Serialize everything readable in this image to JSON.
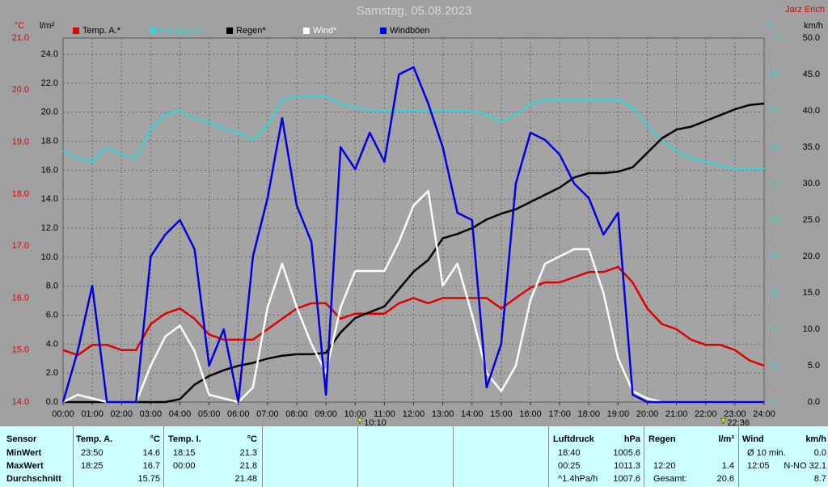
{
  "chart_data": {
    "type": "line",
    "title": "Samstag, 05.08.2023",
    "subtitle": "Jarz Erich",
    "y_label": "°C",
    "y2_label": "l/m²",
    "y3_label": "%",
    "y4_label": "km/h",
    "x": [
      0,
      0.5,
      1,
      1.5,
      2,
      2.5,
      3,
      3.5,
      4,
      4.5,
      5,
      5.5,
      6,
      6.5,
      7,
      7.5,
      8,
      8.5,
      9,
      9.5,
      10,
      10.5,
      11,
      11.5,
      12,
      12.5,
      13,
      13.5,
      14,
      14.5,
      15,
      15.5,
      16,
      16.5,
      17,
      17.5,
      18,
      18.5,
      19,
      19.5,
      20,
      20.5,
      21,
      21.5,
      22,
      22.5,
      23,
      23.5,
      24
    ],
    "xlim": [
      0,
      24
    ],
    "xticks": [
      {
        "value": 0,
        "label": "00:00"
      },
      {
        "value": 1,
        "label": "01:00"
      },
      {
        "value": 2,
        "label": "02:00"
      },
      {
        "value": 3,
        "label": "03:00"
      },
      {
        "value": 4,
        "label": "04:00"
      },
      {
        "value": 5,
        "label": "05:00"
      },
      {
        "value": 6,
        "label": "06:00"
      },
      {
        "value": 7,
        "label": "07:00"
      },
      {
        "value": 8,
        "label": "08:00"
      },
      {
        "value": 9,
        "label": "09:00"
      },
      {
        "value": 10,
        "label": "10:00"
      },
      {
        "value": 11,
        "label": "11:00"
      },
      {
        "value": 12,
        "label": "12:00"
      },
      {
        "value": 13,
        "label": "13:00"
      },
      {
        "value": 14,
        "label": "14:00"
      },
      {
        "value": 15,
        "label": "15:00"
      },
      {
        "value": 16,
        "label": "16:00"
      },
      {
        "value": 17,
        "label": "17:00"
      },
      {
        "value": 18,
        "label": "18:00"
      },
      {
        "value": 19,
        "label": "19:00"
      },
      {
        "value": 20,
        "label": "20:00"
      },
      {
        "value": 21,
        "label": "21:00"
      },
      {
        "value": 22,
        "label": "22:00"
      },
      {
        "value": 23,
        "label": "23:00"
      },
      {
        "value": 24,
        "label": "24:00"
      }
    ],
    "ylim": [
      14,
      21
    ],
    "yticks": [
      {
        "value": 14,
        "label": "14.0"
      },
      {
        "value": 15,
        "label": "15.0"
      },
      {
        "value": 16,
        "label": "16.0"
      },
      {
        "value": 17,
        "label": "17.0"
      },
      {
        "value": 18,
        "label": "18.0"
      },
      {
        "value": 19,
        "label": "19.0"
      },
      {
        "value": 20,
        "label": "20.0"
      },
      {
        "value": 21,
        "label": "21.0"
      }
    ],
    "y2lim": [
      0,
      25.12
    ],
    "y2ticks": [
      {
        "value": 0,
        "label": "0.0"
      },
      {
        "value": 2,
        "label": "2.0"
      },
      {
        "value": 4,
        "label": "4.0"
      },
      {
        "value": 6,
        "label": "6.0"
      },
      {
        "value": 8,
        "label": "8.0"
      },
      {
        "value": 10,
        "label": "10.0"
      },
      {
        "value": 12,
        "label": "12.0"
      },
      {
        "value": 14,
        "label": "14.0"
      },
      {
        "value": 16,
        "label": "16.0"
      },
      {
        "value": 18,
        "label": "18.0"
      },
      {
        "value": 20,
        "label": "20.0"
      },
      {
        "value": 22,
        "label": "22.0"
      },
      {
        "value": 24,
        "label": "24.0"
      }
    ],
    "y3lim": [
      0,
      100
    ],
    "y3ticks": [
      0,
      10,
      20,
      30,
      40,
      50,
      60,
      70,
      80,
      90,
      100
    ],
    "y4lim": [
      0,
      50
    ],
    "y4ticks": [
      {
        "value": 0,
        "label": "0.0"
      },
      {
        "value": 5,
        "label": "5.0"
      },
      {
        "value": 10,
        "label": "10.0"
      },
      {
        "value": 15,
        "label": "15.0"
      },
      {
        "value": 20,
        "label": "20.0"
      },
      {
        "value": 25,
        "label": "25.0"
      },
      {
        "value": 30,
        "label": "30.0"
      },
      {
        "value": 35,
        "label": "35.0"
      },
      {
        "value": 40,
        "label": "40.0"
      },
      {
        "value": 45,
        "label": "45.0"
      },
      {
        "value": 50,
        "label": "50.0"
      }
    ],
    "grid": true,
    "series": [
      {
        "name": "Temp. A.*",
        "color": "#e00000",
        "axis": "y",
        "values": [
          15.0,
          14.9,
          15.1,
          15.1,
          15.0,
          15.0,
          15.5,
          15.7,
          15.8,
          15.6,
          15.3,
          15.2,
          15.2,
          15.2,
          15.4,
          15.6,
          15.8,
          15.9,
          15.9,
          15.6,
          15.7,
          15.7,
          15.7,
          15.9,
          16.0,
          15.9,
          16.0,
          16.0,
          16.0,
          16.0,
          15.8,
          16.0,
          16.2,
          16.3,
          16.3,
          16.4,
          16.5,
          16.5,
          16.6,
          16.3,
          15.8,
          15.5,
          15.4,
          15.2,
          15.1,
          15.1,
          15.0,
          14.8,
          14.7
        ]
      },
      {
        "name": "Feuchte A.*",
        "color": "#40d0d0",
        "axis": "y3",
        "values": [
          69,
          67,
          66,
          70,
          68,
          67,
          75,
          79,
          80,
          78,
          77,
          75,
          74,
          72,
          76,
          83,
          84,
          84,
          84,
          82,
          81,
          80,
          80,
          80,
          80,
          80,
          80,
          80,
          80,
          79,
          77,
          79,
          82,
          83,
          83,
          83,
          83,
          83,
          83,
          81,
          76,
          72,
          69,
          67,
          66,
          65,
          64,
          64,
          64
        ]
      },
      {
        "name": "Regen*",
        "color": "#000000",
        "axis": "y2",
        "values": [
          0,
          0,
          0,
          0,
          0,
          0,
          0,
          0,
          0.2,
          1.2,
          1.8,
          2.2,
          2.5,
          2.7,
          3.0,
          3.2,
          3.3,
          3.3,
          3.4,
          4.8,
          5.8,
          6.2,
          6.6,
          7.8,
          9.0,
          9.8,
          11.3,
          11.6,
          12.0,
          12.6,
          13.0,
          13.3,
          13.8,
          14.3,
          14.8,
          15.5,
          15.8,
          15.8,
          15.9,
          16.2,
          17.2,
          18.2,
          18.8,
          19.0,
          19.4,
          19.8,
          20.2,
          20.5,
          20.6
        ]
      },
      {
        "name": "Wind*",
        "color": "#ffffff",
        "axis": "y4",
        "values": [
          0,
          1,
          0.5,
          0,
          0,
          0,
          5,
          9,
          10.5,
          7,
          1,
          0.5,
          0,
          2,
          13,
          19,
          13,
          8,
          4,
          13,
          18,
          18,
          18,
          22,
          27,
          29,
          16,
          19,
          12,
          4,
          1.5,
          5,
          14,
          19,
          20,
          21,
          21,
          15,
          6,
          1.5,
          0.5,
          0,
          0,
          0,
          0,
          0,
          0,
          0,
          0
        ]
      },
      {
        "name": "Windböen",
        "color": "#0000e0",
        "axis": "y4",
        "values": [
          0,
          7,
          16,
          0,
          0,
          0,
          20,
          23,
          25,
          21,
          5,
          10,
          0,
          20,
          28,
          39,
          27,
          22,
          1,
          35,
          32,
          37,
          33,
          45,
          46,
          41,
          35,
          26,
          25,
          2,
          8,
          30,
          37,
          36,
          34,
          30,
          28,
          23,
          26,
          1,
          0,
          0,
          0,
          0,
          0,
          0,
          0,
          0,
          0
        ]
      }
    ],
    "annotations": [
      {
        "x": 10.1667,
        "label": "10:10"
      },
      {
        "x": 22.6,
        "label": "22:36"
      }
    ]
  },
  "table": {
    "row_labels": [
      "Sensor",
      "MinWert",
      "MaxWert",
      "Durchschnitt"
    ],
    "sections": [
      {
        "name": "Temp. A.",
        "unit": "°C",
        "rows": [
          {
            "time": "23:50",
            "value": "14.6"
          },
          {
            "time": "18:25",
            "value": "16.7"
          },
          {
            "value": "15.75"
          }
        ]
      },
      {
        "name": "Temp. I.",
        "unit": "°C",
        "rows": [
          {
            "time": "18:15",
            "value": "21.3"
          },
          {
            "time": "00:00",
            "value": "21.8"
          },
          {
            "value": "21.48"
          }
        ]
      },
      {
        "name": "Luftdruck",
        "unit": "hPa",
        "rows": [
          {
            "time": "18:40",
            "value": "1005.6"
          },
          {
            "time": "00:25",
            "value": "1011.3"
          },
          {
            "time": "^1.4hPa/h",
            "value": "1007.6"
          }
        ]
      },
      {
        "name": "Regen",
        "unit": "l/m²",
        "rows": [
          null,
          {
            "time": "12:20",
            "value": "1.4"
          },
          {
            "time": "Gesamt:",
            "value": "20.6"
          }
        ]
      },
      {
        "name": "Wind",
        "unit": "km/h",
        "rows": [
          {
            "time": "Ø 10 min.",
            "value": "0.0"
          },
          {
            "time": "12:05",
            "value": "N-NO 32.1"
          },
          {
            "value": "8.7"
          }
        ]
      }
    ]
  }
}
